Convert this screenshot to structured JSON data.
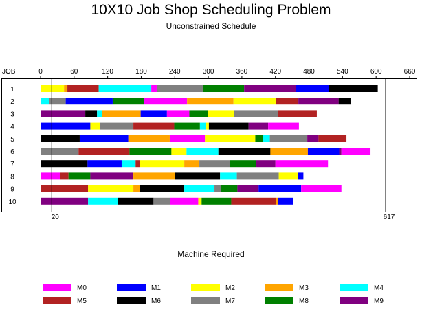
{
  "chart_data": {
    "type": "bar",
    "title": "10X10 Job Shop Scheduling Problem",
    "subtitle": "Unconstrained Schedule",
    "xlabel": "Machine Required",
    "ylabel": "JOB",
    "xlim": [
      0,
      660
    ],
    "xticks": [
      0,
      60,
      120,
      180,
      240,
      300,
      360,
      420,
      480,
      540,
      600,
      660
    ],
    "reference_lines": [
      {
        "x": 20,
        "label": "20"
      },
      {
        "x": 617,
        "label": "617"
      }
    ],
    "machines": [
      {
        "name": "M0",
        "color": "#ff00ff"
      },
      {
        "name": "M1",
        "color": "#0000ff"
      },
      {
        "name": "M2",
        "color": "#ffff00"
      },
      {
        "name": "M3",
        "color": "#ffa500"
      },
      {
        "name": "M4",
        "color": "#00ffff"
      },
      {
        "name": "M5",
        "color": "#b22222"
      },
      {
        "name": "M6",
        "color": "#000000"
      },
      {
        "name": "M7",
        "color": "#808080"
      },
      {
        "name": "M8",
        "color": "#008000"
      },
      {
        "name": "M9",
        "color": "#800080"
      }
    ],
    "jobs": [
      {
        "job": "1",
        "tasks": [
          {
            "m": "M2",
            "start": 0,
            "end": 42
          },
          {
            "m": "M3",
            "start": 42,
            "end": 48
          },
          {
            "m": "M5",
            "start": 48,
            "end": 104
          },
          {
            "m": "M4",
            "start": 104,
            "end": 198
          },
          {
            "m": "M0",
            "start": 198,
            "end": 208
          },
          {
            "m": "M7",
            "start": 208,
            "end": 290
          },
          {
            "m": "M8",
            "start": 290,
            "end": 364
          },
          {
            "m": "M9",
            "start": 364,
            "end": 457
          },
          {
            "m": "M1",
            "start": 457,
            "end": 516
          },
          {
            "m": "M6",
            "start": 516,
            "end": 603
          }
        ]
      },
      {
        "job": "2",
        "tasks": [
          {
            "m": "M4",
            "start": 0,
            "end": 16
          },
          {
            "m": "M7",
            "start": 16,
            "end": 45
          },
          {
            "m": "M1",
            "start": 45,
            "end": 129
          },
          {
            "m": "M8",
            "start": 129,
            "end": 185
          },
          {
            "m": "M0",
            "start": 185,
            "end": 262
          },
          {
            "m": "M3",
            "start": 262,
            "end": 345
          },
          {
            "m": "M2",
            "start": 345,
            "end": 421
          },
          {
            "m": "M5",
            "start": 421,
            "end": 461
          },
          {
            "m": "M9",
            "start": 461,
            "end": 533
          },
          {
            "m": "M6",
            "start": 533,
            "end": 555
          }
        ]
      },
      {
        "job": "3",
        "tasks": [
          {
            "m": "M9",
            "start": 0,
            "end": 80
          },
          {
            "m": "M6",
            "start": 80,
            "end": 101
          },
          {
            "m": "M4",
            "start": 101,
            "end": 110
          },
          {
            "m": "M3",
            "start": 110,
            "end": 179
          },
          {
            "m": "M1",
            "start": 179,
            "end": 226
          },
          {
            "m": "M0",
            "start": 226,
            "end": 266
          },
          {
            "m": "M8",
            "start": 266,
            "end": 299
          },
          {
            "m": "M2",
            "start": 299,
            "end": 346
          },
          {
            "m": "M7",
            "start": 346,
            "end": 424
          },
          {
            "m": "M5",
            "start": 424,
            "end": 494
          }
        ]
      },
      {
        "job": "4",
        "tasks": [
          {
            "m": "M1",
            "start": 0,
            "end": 89
          },
          {
            "m": "M2",
            "start": 89,
            "end": 106
          },
          {
            "m": "M7",
            "start": 106,
            "end": 166
          },
          {
            "m": "M5",
            "start": 166,
            "end": 239
          },
          {
            "m": "M8",
            "start": 239,
            "end": 285
          },
          {
            "m": "M4",
            "start": 285,
            "end": 295
          },
          {
            "m": "M2",
            "start": 295,
            "end": 301
          },
          {
            "m": "M6",
            "start": 301,
            "end": 372
          },
          {
            "m": "M9",
            "start": 372,
            "end": 407
          },
          {
            "m": "M0",
            "start": 407,
            "end": 462
          }
        ]
      },
      {
        "job": "5",
        "tasks": [
          {
            "m": "M6",
            "start": 0,
            "end": 70
          },
          {
            "m": "M1",
            "start": 70,
            "end": 157
          },
          {
            "m": "M3",
            "start": 157,
            "end": 231
          },
          {
            "m": "M0",
            "start": 231,
            "end": 294
          },
          {
            "m": "M2",
            "start": 294,
            "end": 384
          },
          {
            "m": "M8",
            "start": 384,
            "end": 398
          },
          {
            "m": "M4",
            "start": 398,
            "end": 410
          },
          {
            "m": "M7",
            "start": 410,
            "end": 477
          },
          {
            "m": "M9",
            "start": 477,
            "end": 497
          },
          {
            "m": "M5",
            "start": 497,
            "end": 547
          }
        ]
      },
      {
        "job": "6",
        "tasks": [
          {
            "m": "M7",
            "start": 0,
            "end": 68
          },
          {
            "m": "M5",
            "start": 68,
            "end": 159
          },
          {
            "m": "M8",
            "start": 159,
            "end": 234
          },
          {
            "m": "M2",
            "start": 234,
            "end": 261
          },
          {
            "m": "M4",
            "start": 261,
            "end": 318
          },
          {
            "m": "M6",
            "start": 318,
            "end": 411
          },
          {
            "m": "M3",
            "start": 411,
            "end": 478
          },
          {
            "m": "M1",
            "start": 478,
            "end": 534
          },
          {
            "m": "M9",
            "start": 534,
            "end": 538
          },
          {
            "m": "M0",
            "start": 538,
            "end": 590
          }
        ]
      },
      {
        "job": "7",
        "tasks": [
          {
            "m": "M6",
            "start": 0,
            "end": 84
          },
          {
            "m": "M1",
            "start": 84,
            "end": 145
          },
          {
            "m": "M4",
            "start": 145,
            "end": 170
          },
          {
            "m": "M5",
            "start": 170,
            "end": 177
          },
          {
            "m": "M2",
            "start": 177,
            "end": 257
          },
          {
            "m": "M3",
            "start": 257,
            "end": 284
          },
          {
            "m": "M7",
            "start": 284,
            "end": 339
          },
          {
            "m": "M8",
            "start": 339,
            "end": 385
          },
          {
            "m": "M9",
            "start": 385,
            "end": 420
          },
          {
            "m": "M0",
            "start": 420,
            "end": 514
          }
        ]
      },
      {
        "job": "8",
        "tasks": [
          {
            "m": "M0",
            "start": 0,
            "end": 35
          },
          {
            "m": "M5",
            "start": 35,
            "end": 50
          },
          {
            "m": "M8",
            "start": 50,
            "end": 89
          },
          {
            "m": "M9",
            "start": 89,
            "end": 166
          },
          {
            "m": "M3",
            "start": 166,
            "end": 240
          },
          {
            "m": "M6",
            "start": 240,
            "end": 321
          },
          {
            "m": "M4",
            "start": 321,
            "end": 351
          },
          {
            "m": "M7",
            "start": 351,
            "end": 426
          },
          {
            "m": "M2",
            "start": 426,
            "end": 460
          },
          {
            "m": "M1",
            "start": 460,
            "end": 470
          }
        ]
      },
      {
        "job": "9",
        "tasks": [
          {
            "m": "M5",
            "start": 0,
            "end": 85
          },
          {
            "m": "M2",
            "start": 85,
            "end": 166
          },
          {
            "m": "M3",
            "start": 166,
            "end": 178
          },
          {
            "m": "M6",
            "start": 178,
            "end": 257
          },
          {
            "m": "M4",
            "start": 257,
            "end": 311
          },
          {
            "m": "M7",
            "start": 311,
            "end": 322
          },
          {
            "m": "M8",
            "start": 322,
            "end": 352
          },
          {
            "m": "M9",
            "start": 352,
            "end": 390
          },
          {
            "m": "M1",
            "start": 390,
            "end": 466
          },
          {
            "m": "M0",
            "start": 466,
            "end": 538
          }
        ]
      },
      {
        "job": "10",
        "tasks": [
          {
            "m": "M9",
            "start": 0,
            "end": 85
          },
          {
            "m": "M4",
            "start": 85,
            "end": 138
          },
          {
            "m": "M6",
            "start": 138,
            "end": 202
          },
          {
            "m": "M7",
            "start": 202,
            "end": 232
          },
          {
            "m": "M0",
            "start": 232,
            "end": 282
          },
          {
            "m": "M2",
            "start": 282,
            "end": 288
          },
          {
            "m": "M8",
            "start": 288,
            "end": 341
          },
          {
            "m": "M5",
            "start": 341,
            "end": 421
          },
          {
            "m": "M3",
            "start": 421,
            "end": 425
          },
          {
            "m": "M1",
            "start": 425,
            "end": 452
          }
        ]
      }
    ],
    "legend_placement": "bottom",
    "grid": false
  }
}
